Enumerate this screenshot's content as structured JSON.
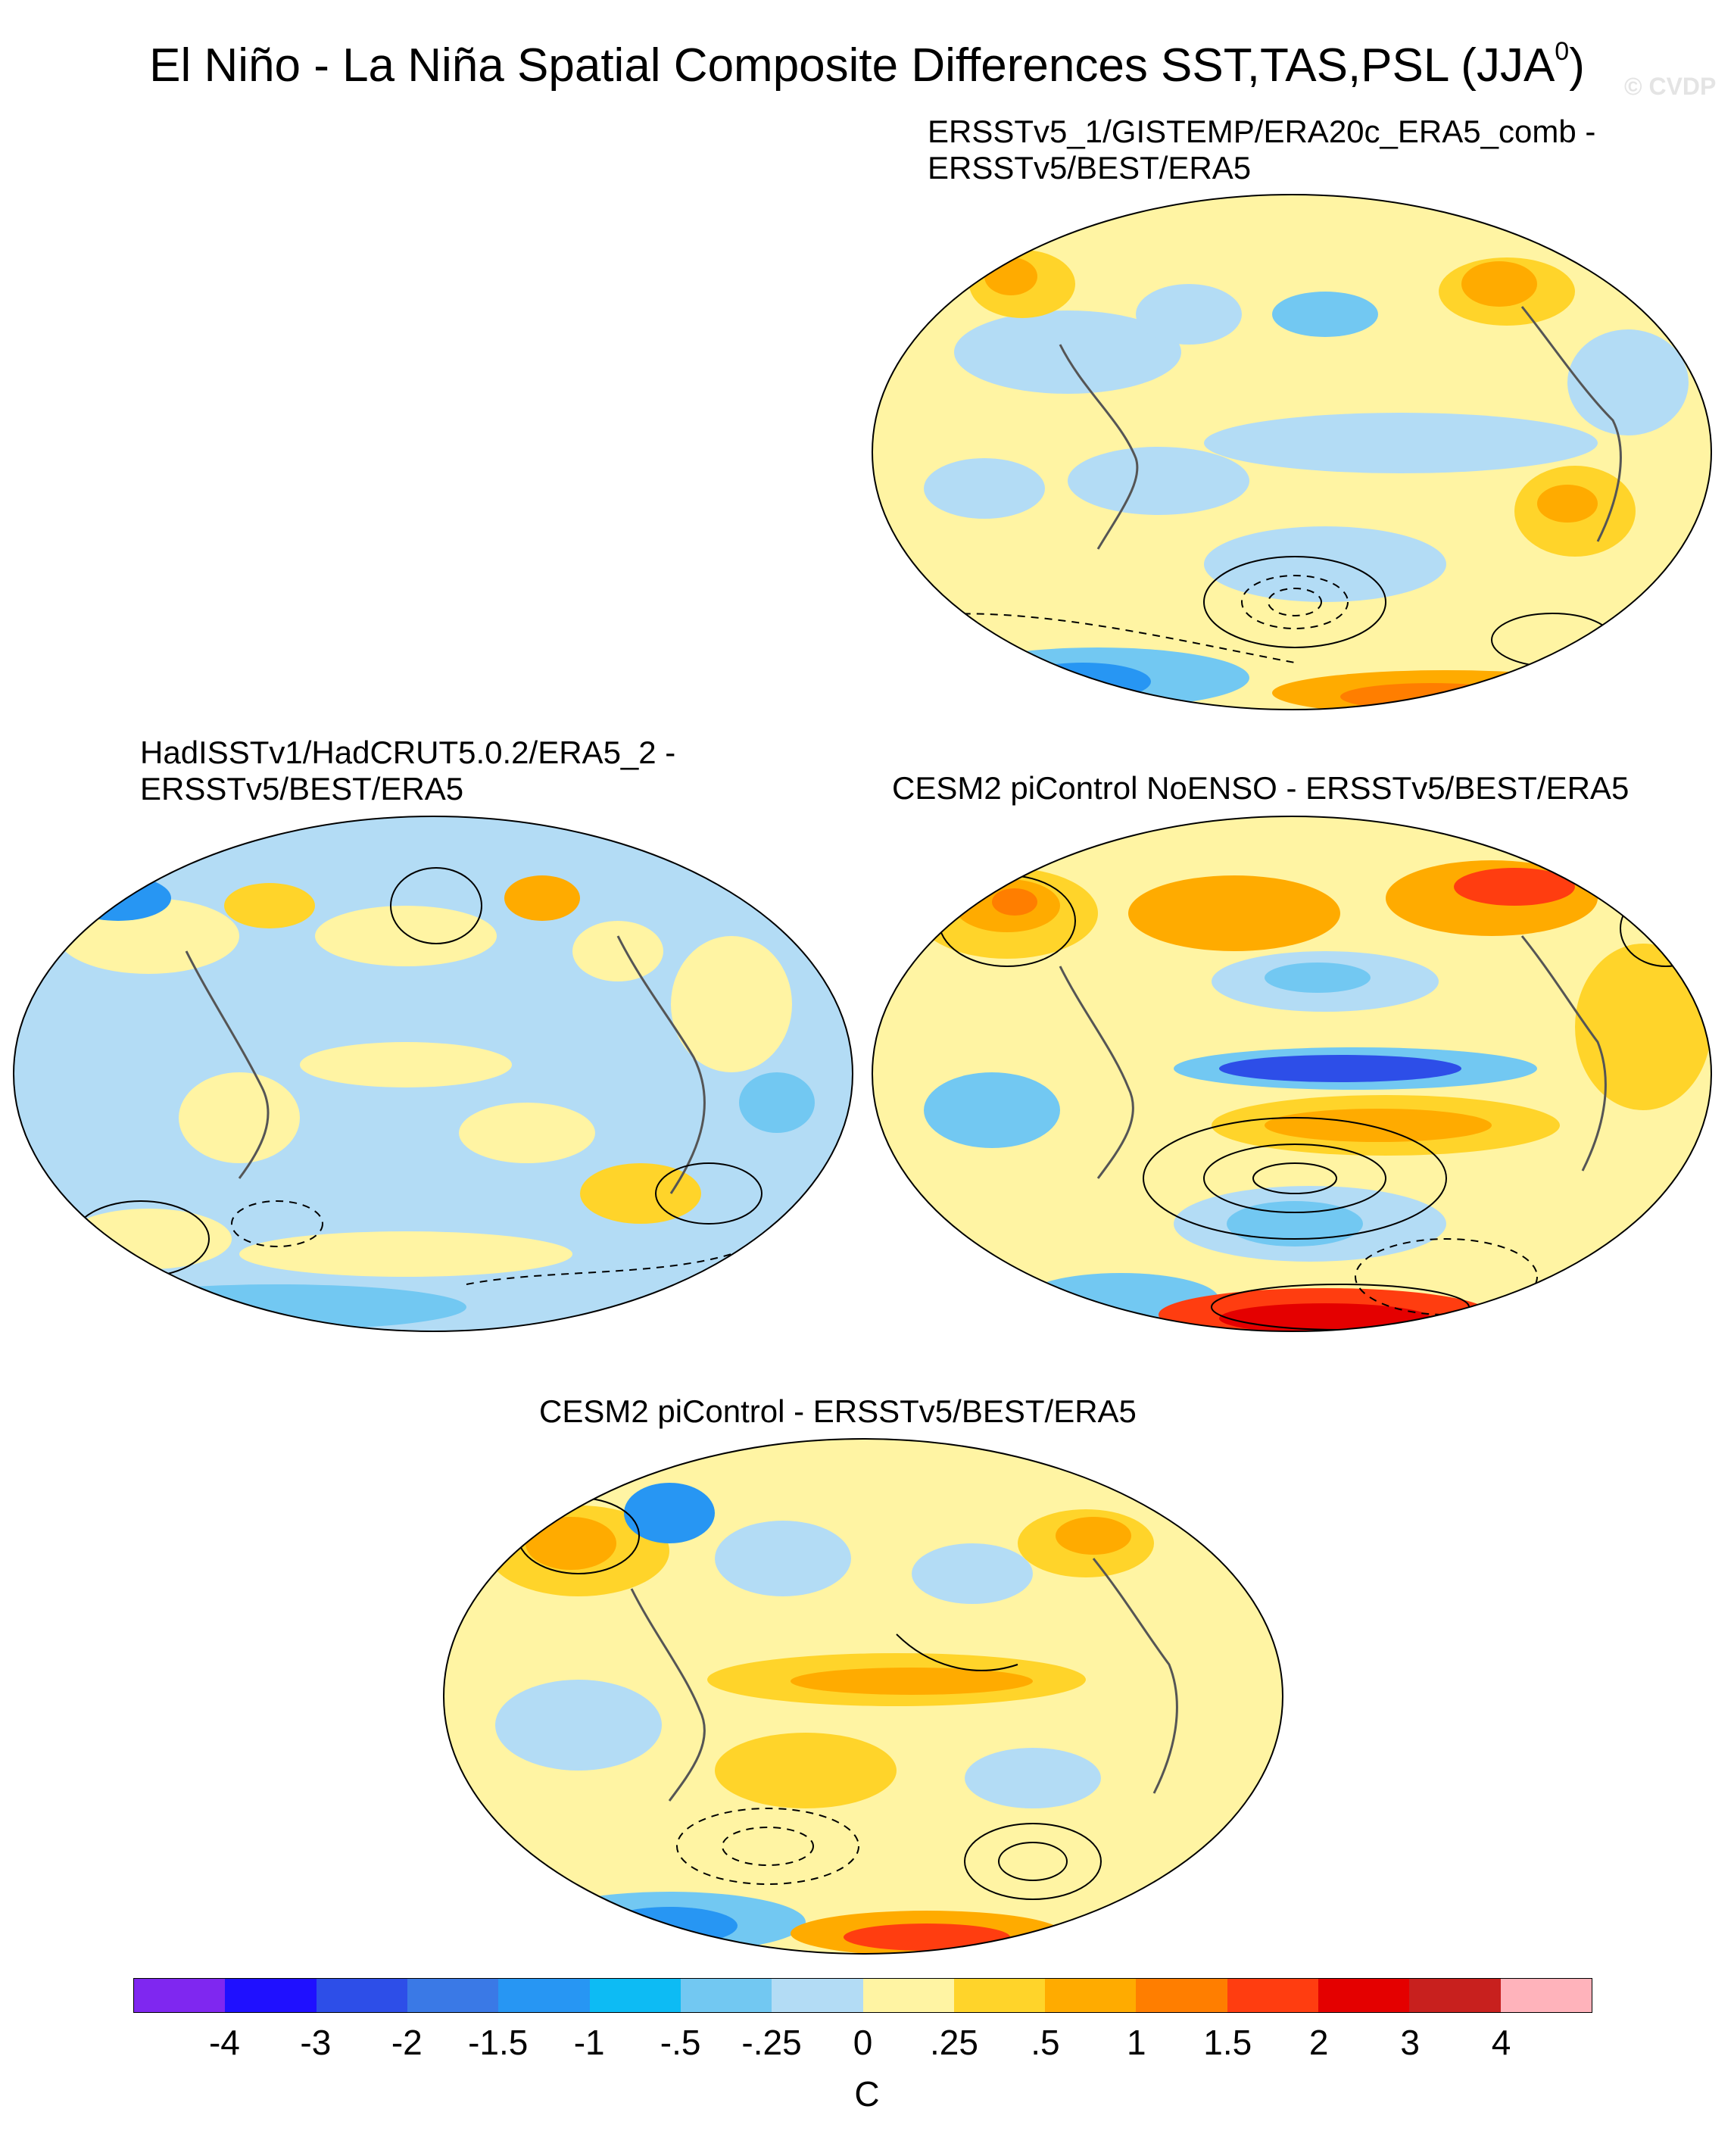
{
  "figure": {
    "title_main": "El Niño - La Niña Spatial Composite Differences SST,TAS,PSL (JJA",
    "title_sup": "0",
    "title_close": ")",
    "watermark": "© CVDP"
  },
  "panels": [
    {
      "id": "ersst",
      "title_line1": "ERSSTv5_1/GISTEMP/ERA20c_ERA5_comb -",
      "title_line2": "ERSSTv5/BEST/ERA5"
    },
    {
      "id": "hadisst",
      "title_line1": "HadISSTv1/HadCRUT5.0.2/ERA5_2 -",
      "title_line2": "ERSSTv5/BEST/ERA5"
    },
    {
      "id": "noenso",
      "title_line1": "CESM2 piControl NoENSO - ERSSTv5/BEST/ERA5",
      "title_line2": ""
    },
    {
      "id": "picontrol",
      "title_line1": "CESM2 piControl - ERSSTv5/BEST/ERA5",
      "title_line2": ""
    }
  ],
  "colorbar": {
    "units": "C",
    "labels": [
      "-4",
      "-3",
      "-2",
      "-1.5",
      "-1",
      "-.5",
      "-.25",
      "0",
      ".25",
      ".5",
      "1",
      "1.5",
      "2",
      "3",
      "4"
    ],
    "colors": [
      "#7f27f0",
      "#1f10ff",
      "#2d4ee8",
      "#3a79e6",
      "#2796f3",
      "#0dbbf4",
      "#72c8f2",
      "#b3dcf5",
      "#fff4a3",
      "#ffd42a",
      "#ffab00",
      "#ff7e00",
      "#ff3d10",
      "#e40000",
      "#c8201e",
      "#ffb3bb"
    ]
  }
}
